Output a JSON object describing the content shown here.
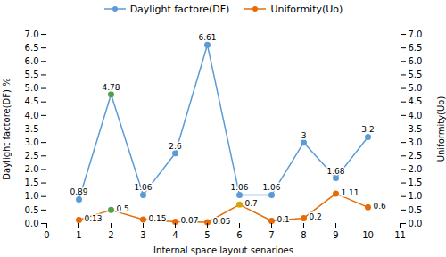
{
  "chart_data": {
    "type": "line",
    "xlabel": "Internal space layout senarioes",
    "ylabel": "Daylight factore(DF) %",
    "y2label": "Uniformity(Uo)",
    "x": [
      1,
      2,
      3,
      4,
      5,
      6,
      7,
      8,
      9,
      10
    ],
    "series": [
      {
        "name": "Daylight factore(DF)",
        "color": "#5b9bd5",
        "marker": "circle",
        "colors": [
          "#5b9bd5",
          "#4ea14a",
          "#5b9bd5",
          "#5b9bd5",
          "#5b9bd5",
          "#5b9bd5",
          "#5b9bd5",
          "#5b9bd5",
          "#5b9bd5",
          "#5b9bd5"
        ],
        "values": [
          0.89,
          4.78,
          1.06,
          2.6,
          6.61,
          1.06,
          1.06,
          3.0,
          1.68,
          3.2
        ]
      },
      {
        "name": "Uniformity(Uo)",
        "color": "#e36c09",
        "marker": "circle",
        "axis": "y2",
        "colors": [
          "#e36c09",
          "#4ea14a",
          "#e36c09",
          "#e36c09",
          "#e36c09",
          "#d4a800",
          "#e36c09",
          "#e36c09",
          "#e36c09",
          "#e36c09"
        ],
        "values": [
          0.13,
          0.5,
          0.15,
          0.07,
          0.05,
          0.7,
          0.1,
          0.2,
          1.11,
          0.6
        ]
      }
    ],
    "data_labels": true,
    "xlim": [
      0,
      11
    ],
    "xticks": [
      0,
      1,
      2,
      3,
      4,
      5,
      6,
      7,
      8,
      9,
      10,
      11
    ],
    "ylim": [
      0,
      7
    ],
    "yticks": [
      {
        "value": 0,
        "label": "0.0"
      },
      0.5,
      {
        "value": 1,
        "label": "1.0"
      },
      1.5,
      {
        "value": 2,
        "label": "2.0"
      },
      2.5,
      {
        "value": 3,
        "label": "3.0"
      },
      3.5,
      {
        "value": 4,
        "label": "4.0"
      },
      4.5,
      {
        "value": 5,
        "label": "5.0"
      },
      5.5,
      {
        "value": 6,
        "label": "6.0"
      },
      6.5,
      {
        "value": 7,
        "label": "7.0"
      }
    ],
    "y2lim": [
      0,
      7
    ],
    "y2ticks": [
      {
        "value": 0,
        "label": "0.0"
      },
      0.5,
      {
        "value": 1,
        "label": "1.0"
      },
      1.5,
      {
        "value": 2,
        "label": "2.0"
      },
      2.5,
      {
        "value": 3,
        "label": "3.0"
      },
      3.5,
      {
        "value": 4,
        "label": "4.0"
      },
      4.5,
      {
        "value": 5,
        "label": "5.0"
      },
      5.5,
      {
        "value": 6,
        "label": "6.0"
      },
      6.5,
      {
        "value": 7,
        "label": "7.0"
      }
    ],
    "legend": "top",
    "grid": false
  }
}
